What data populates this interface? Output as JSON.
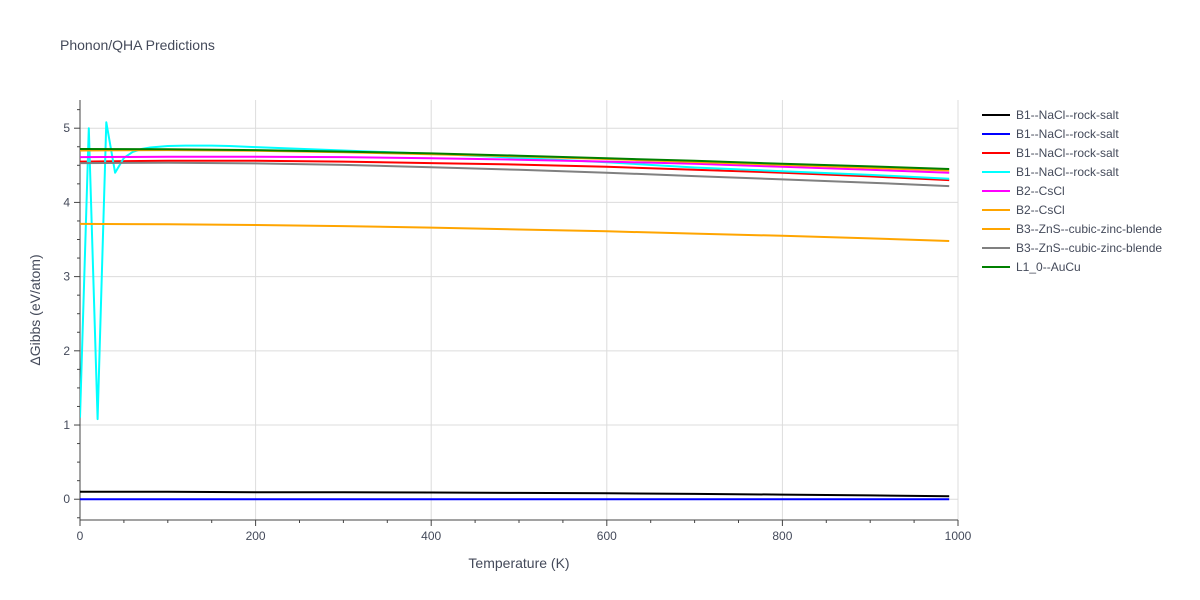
{
  "chart_data": {
    "type": "line",
    "title": "Phonon/QHA Predictions",
    "xlabel": "Temperature (K)",
    "ylabel": "ΔGibbs (eV/atom)",
    "xlim": [
      0,
      1000
    ],
    "ylim": [
      -0.28,
      5.38
    ],
    "x_ticks": [
      0,
      200,
      400,
      600,
      800,
      1000
    ],
    "y_ticks": [
      0,
      1,
      2,
      3,
      4,
      5
    ],
    "grid": true,
    "legend": "right",
    "series": [
      {
        "name": "B1--NaCl--rock-salt",
        "color": "#000000",
        "x": [
          0,
          100,
          200,
          300,
          400,
          500,
          600,
          700,
          800,
          900,
          990
        ],
        "y": [
          0.1,
          0.1,
          0.095,
          0.093,
          0.09,
          0.085,
          0.08,
          0.072,
          0.062,
          0.052,
          0.04
        ]
      },
      {
        "name": "B1--NaCl--rock-salt",
        "color": "#0000ff",
        "x": [
          0,
          200,
          400,
          600,
          800,
          990
        ],
        "y": [
          0.0,
          0.0,
          0.0,
          0.0,
          0.0,
          0.0
        ]
      },
      {
        "name": "B1--NaCl--rock-salt",
        "color": "#ff0000",
        "x": [
          0,
          100,
          200,
          300,
          400,
          500,
          600,
          700,
          800,
          900,
          990
        ],
        "y": [
          4.55,
          4.56,
          4.56,
          4.55,
          4.53,
          4.51,
          4.48,
          4.44,
          4.4,
          4.35,
          4.3
        ]
      },
      {
        "name": "B1--NaCl--rock-salt",
        "color": "#00ffff",
        "x": [
          0,
          10,
          20,
          30,
          40,
          50,
          60,
          70,
          80,
          100,
          120,
          150,
          170,
          200,
          300,
          400,
          500,
          600,
          700,
          800,
          900,
          990
        ],
        "y": [
          1.1,
          5.0,
          1.08,
          5.08,
          4.4,
          4.6,
          4.68,
          4.72,
          4.74,
          4.76,
          4.765,
          4.765,
          4.76,
          4.745,
          4.7,
          4.655,
          4.6,
          4.54,
          4.47,
          4.42,
          4.37,
          4.32
        ]
      },
      {
        "name": "B2--CsCl",
        "color": "#ff00ff",
        "x": [
          0,
          100,
          200,
          300,
          400,
          500,
          600,
          700,
          800,
          900,
          990
        ],
        "y": [
          4.61,
          4.615,
          4.615,
          4.61,
          4.595,
          4.575,
          4.55,
          4.52,
          4.48,
          4.44,
          4.4
        ]
      },
      {
        "name": "B2--CsCl",
        "color": "#ffa500",
        "x": [
          0,
          100,
          200,
          300,
          400,
          500,
          600,
          700,
          800,
          900,
          990
        ],
        "y": [
          3.71,
          3.705,
          3.695,
          3.68,
          3.66,
          3.635,
          3.61,
          3.58,
          3.55,
          3.515,
          3.48
        ]
      },
      {
        "name": "B3--ZnS--cubic-zinc-blende",
        "color": "#ffa500",
        "x": [
          0,
          100,
          200,
          300,
          400,
          500,
          600,
          700,
          800,
          900,
          990
        ],
        "y": [
          4.7,
          4.705,
          4.695,
          4.675,
          4.65,
          4.62,
          4.585,
          4.545,
          4.505,
          4.465,
          4.43
        ]
      },
      {
        "name": "B3--ZnS--cubic-zinc-blende",
        "color": "#808080",
        "x": [
          0,
          100,
          200,
          300,
          400,
          500,
          600,
          700,
          800,
          900,
          990
        ],
        "y": [
          4.53,
          4.535,
          4.525,
          4.505,
          4.475,
          4.44,
          4.4,
          4.355,
          4.31,
          4.265,
          4.22
        ]
      },
      {
        "name": "L1_0--AuCu",
        "color": "#008000",
        "x": [
          0,
          100,
          200,
          300,
          400,
          500,
          600,
          700,
          800,
          900,
          990
        ],
        "y": [
          4.72,
          4.715,
          4.705,
          4.685,
          4.66,
          4.63,
          4.595,
          4.56,
          4.52,
          4.485,
          4.45
        ]
      }
    ]
  }
}
